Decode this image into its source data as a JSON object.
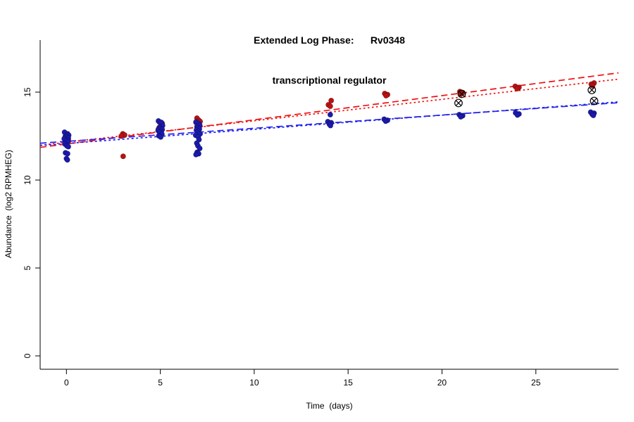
{
  "title": {
    "line1": "Extended Log Phase:      Rv0348",
    "line2": "transcriptional regulator"
  },
  "axes": {
    "xlabel": "Time  (days)",
    "ylabel": "Abundance  (log2 RPMHEG)"
  },
  "chart_data": {
    "type": "scatter",
    "title": "Extended Log Phase: Rv0348 transcriptional regulator",
    "xlabel": "Time (days)",
    "ylabel": "Abundance (log2 RPMHEG)",
    "xlim": [
      -1.4,
      29.4
    ],
    "ylim": [
      -0.76,
      17.96
    ],
    "x_ticks": [
      0,
      5,
      10,
      15,
      20,
      25
    ],
    "y_ticks": [
      0,
      5,
      10,
      15
    ],
    "grid": false,
    "legend": "none",
    "series": [
      {
        "name": "red-condition",
        "color": "#bb1111",
        "points": [
          [
            -0.06,
            12.48
          ],
          [
            0.1,
            12.3
          ],
          [
            3.0,
            12.63
          ],
          [
            3.1,
            12.56
          ],
          [
            2.92,
            12.5
          ],
          [
            3.02,
            11.35
          ],
          [
            4.95,
            13.3
          ],
          [
            5.1,
            13.22
          ],
          [
            5.02,
            13.05
          ],
          [
            4.9,
            12.9
          ],
          [
            6.95,
            13.52
          ],
          [
            7.05,
            13.4
          ],
          [
            7.12,
            13.33
          ],
          [
            6.9,
            13.28
          ],
          [
            7.0,
            13.18
          ],
          [
            7.08,
            13.05
          ],
          [
            14.1,
            14.52
          ],
          [
            13.95,
            14.28
          ],
          [
            14.05,
            14.2
          ],
          [
            16.95,
            14.92
          ],
          [
            17.1,
            14.86
          ],
          [
            17.02,
            14.8
          ],
          [
            20.95,
            15.03
          ],
          [
            21.1,
            14.97
          ],
          [
            21.02,
            14.9
          ],
          [
            23.9,
            15.33
          ],
          [
            24.1,
            15.27
          ],
          [
            24.0,
            15.2
          ],
          [
            28.1,
            15.52
          ],
          [
            27.95,
            15.45
          ],
          [
            28.02,
            15.36
          ]
        ]
      },
      {
        "name": "blue-condition",
        "color": "#1a1aae",
        "points": [
          [
            -0.1,
            12.72
          ],
          [
            0.06,
            12.63
          ],
          [
            0.12,
            12.55
          ],
          [
            -0.04,
            12.5
          ],
          [
            0.0,
            12.45
          ],
          [
            0.1,
            12.4
          ],
          [
            -0.12,
            12.35
          ],
          [
            0.04,
            12.3
          ],
          [
            -0.02,
            12.24
          ],
          [
            0.08,
            12.18
          ],
          [
            -0.08,
            12.05
          ],
          [
            0.02,
            11.95
          ],
          [
            0.1,
            11.9
          ],
          [
            -0.05,
            11.55
          ],
          [
            0.06,
            11.5
          ],
          [
            0.0,
            11.22
          ],
          [
            0.05,
            11.15
          ],
          [
            4.9,
            13.36
          ],
          [
            5.05,
            13.28
          ],
          [
            5.12,
            13.1
          ],
          [
            4.95,
            13.0
          ],
          [
            5.0,
            12.92
          ],
          [
            5.1,
            12.87
          ],
          [
            4.88,
            12.82
          ],
          [
            5.04,
            12.77
          ],
          [
            4.96,
            12.7
          ],
          [
            5.08,
            12.62
          ],
          [
            4.92,
            12.52
          ],
          [
            5.02,
            12.45
          ],
          [
            6.9,
            13.3
          ],
          [
            7.05,
            13.22
          ],
          [
            7.1,
            13.12
          ],
          [
            6.95,
            13.03
          ],
          [
            7.0,
            12.96
          ],
          [
            7.08,
            12.9
          ],
          [
            6.92,
            12.84
          ],
          [
            7.03,
            12.78
          ],
          [
            6.97,
            12.7
          ],
          [
            7.12,
            12.63
          ],
          [
            6.88,
            12.55
          ],
          [
            7.02,
            12.45
          ],
          [
            7.06,
            12.3
          ],
          [
            6.94,
            12.1
          ],
          [
            7.0,
            11.95
          ],
          [
            7.1,
            11.8
          ],
          [
            6.96,
            11.58
          ],
          [
            7.04,
            11.5
          ],
          [
            6.9,
            11.45
          ],
          [
            14.05,
            13.72
          ],
          [
            13.92,
            13.32
          ],
          [
            14.1,
            13.26
          ],
          [
            14.0,
            13.18
          ],
          [
            14.06,
            13.1
          ],
          [
            16.92,
            13.46
          ],
          [
            17.1,
            13.4
          ],
          [
            17.0,
            13.35
          ],
          [
            20.92,
            13.72
          ],
          [
            21.1,
            13.66
          ],
          [
            21.0,
            13.6
          ],
          [
            23.92,
            13.82
          ],
          [
            24.1,
            13.76
          ],
          [
            24.02,
            13.7
          ],
          [
            27.92,
            13.86
          ],
          [
            28.1,
            13.8
          ],
          [
            28.0,
            13.74
          ],
          [
            28.06,
            13.68
          ]
        ]
      }
    ],
    "outlier_markers": {
      "name": "flagged-points",
      "color": "#000000",
      "points": [
        [
          21.05,
          14.9
        ],
        [
          20.88,
          14.38
        ],
        [
          27.98,
          15.12
        ],
        [
          28.1,
          14.5
        ]
      ]
    },
    "trend_lines": [
      {
        "name": "red-fit-dashed",
        "color": "#ee1111",
        "dash": "9 5",
        "intercept": 12.05,
        "slope": 0.1376
      },
      {
        "name": "red-fit-dotted",
        "color": "#ee1111",
        "dash": "2.5 3.5",
        "intercept": 12.15,
        "slope": 0.122
      },
      {
        "name": "blue-fit-dashed",
        "color": "#2222ee",
        "dash": "9 5",
        "intercept": 12.2,
        "slope": 0.0748
      },
      {
        "name": "blue-fit-dotted",
        "color": "#2222ee",
        "dash": "3 3.5",
        "intercept": 12.08,
        "slope": 0.0805
      }
    ]
  }
}
